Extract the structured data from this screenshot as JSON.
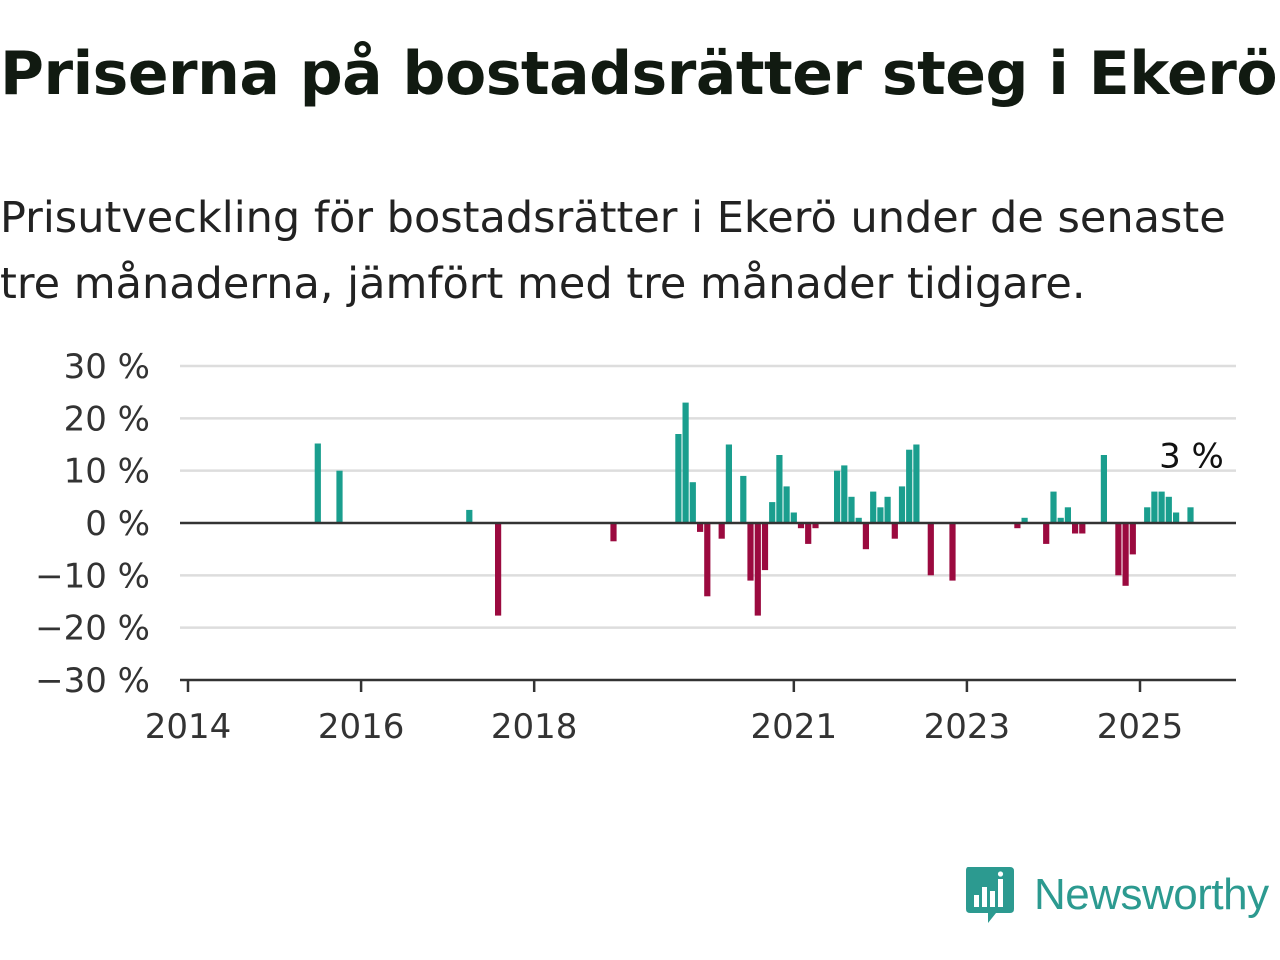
{
  "header": {
    "title": "Priserna på bostadsrätter steg i Ekerö",
    "subtitle": "Prisutveckling för bostadsrätter i Ekerö under de senaste tre månaderna, jämfört med tre månader tidigare."
  },
  "brand": {
    "name": "Newsworthy",
    "icon": "newsworthy-logo-icon",
    "color": "#2c9a90"
  },
  "colors": {
    "positive": "#1a9e8e",
    "negative": "#9b0a3f",
    "grid": "#dddddd",
    "axis": "#333333"
  },
  "chart_data": {
    "type": "bar",
    "title": "Priserna på bostadsrätter steg i Ekerö",
    "xlabel": "",
    "ylabel": "",
    "ylim": [
      -30,
      30
    ],
    "yticks": [
      30,
      20,
      10,
      0,
      -10,
      -20,
      -30
    ],
    "ytick_labels": [
      "30 %",
      "20 %",
      "10 %",
      "0 %",
      "−10 %",
      "−20 %",
      "−30 %"
    ],
    "xticks": [
      "2014",
      "2016",
      "2018",
      "2021",
      "2023",
      "2025"
    ],
    "grid": true,
    "legend": "none",
    "annotation": {
      "text": "3 %",
      "date": "2025-08"
    },
    "unit": "%",
    "points": [
      {
        "date": "2015-07",
        "value": 15.2
      },
      {
        "date": "2015-10",
        "value": 10
      },
      {
        "date": "2017-04",
        "value": 2.5
      },
      {
        "date": "2017-08",
        "value": -17.7
      },
      {
        "date": "2018-12",
        "value": -3.5
      },
      {
        "date": "2019-09",
        "value": 17
      },
      {
        "date": "2019-10",
        "value": 23
      },
      {
        "date": "2019-11",
        "value": 7.8
      },
      {
        "date": "2019-12",
        "value": -1.7
      },
      {
        "date": "2020-01",
        "value": -14
      },
      {
        "date": "2020-03",
        "value": -3
      },
      {
        "date": "2020-04",
        "value": 15
      },
      {
        "date": "2020-06",
        "value": 9
      },
      {
        "date": "2020-07",
        "value": -11
      },
      {
        "date": "2020-08",
        "value": -17.7
      },
      {
        "date": "2020-09",
        "value": -9
      },
      {
        "date": "2020-10",
        "value": 4
      },
      {
        "date": "2020-11",
        "value": 13
      },
      {
        "date": "2020-12",
        "value": 7
      },
      {
        "date": "2021-01",
        "value": 2
      },
      {
        "date": "2021-02",
        "value": -1
      },
      {
        "date": "2021-03",
        "value": -4
      },
      {
        "date": "2021-04",
        "value": -1
      },
      {
        "date": "2021-07",
        "value": 10
      },
      {
        "date": "2021-08",
        "value": 11
      },
      {
        "date": "2021-09",
        "value": 5
      },
      {
        "date": "2021-10",
        "value": 1
      },
      {
        "date": "2021-11",
        "value": -5
      },
      {
        "date": "2021-12",
        "value": 6
      },
      {
        "date": "2022-01",
        "value": 3
      },
      {
        "date": "2022-02",
        "value": 5
      },
      {
        "date": "2022-03",
        "value": -3
      },
      {
        "date": "2022-04",
        "value": 7
      },
      {
        "date": "2022-05",
        "value": 14
      },
      {
        "date": "2022-06",
        "value": 15
      },
      {
        "date": "2022-08",
        "value": -10
      },
      {
        "date": "2022-11",
        "value": -11
      },
      {
        "date": "2023-08",
        "value": -1
      },
      {
        "date": "2023-09",
        "value": 1
      },
      {
        "date": "2023-12",
        "value": -4
      },
      {
        "date": "2024-01",
        "value": 6
      },
      {
        "date": "2024-02",
        "value": 1
      },
      {
        "date": "2024-03",
        "value": 3
      },
      {
        "date": "2024-04",
        "value": -2
      },
      {
        "date": "2024-05",
        "value": -2
      },
      {
        "date": "2024-08",
        "value": 13
      },
      {
        "date": "2024-10",
        "value": -10
      },
      {
        "date": "2024-11",
        "value": -12
      },
      {
        "date": "2024-12",
        "value": -6
      },
      {
        "date": "2025-02",
        "value": 3
      },
      {
        "date": "2025-03",
        "value": 6
      },
      {
        "date": "2025-04",
        "value": 6
      },
      {
        "date": "2025-05",
        "value": 5
      },
      {
        "date": "2025-06",
        "value": 2
      },
      {
        "date": "2025-08",
        "value": 3
      }
    ]
  }
}
